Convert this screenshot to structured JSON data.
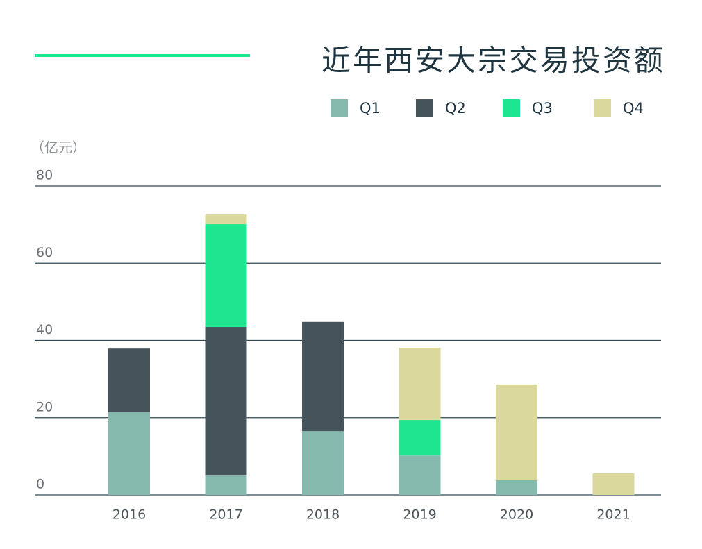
{
  "chart_data": {
    "type": "stacked_bar",
    "title": "近年西安大宗交易投资额",
    "y_label": "（亿元）",
    "categories": [
      "2016",
      "2017",
      "2018",
      "2019",
      "2020",
      "2021"
    ],
    "series": [
      {
        "name": "Q1",
        "color": "#86b9ad",
        "values": [
          21.4,
          5.0,
          16.5,
          10.2,
          3.8,
          0
        ]
      },
      {
        "name": "Q2",
        "color": "#45535a",
        "values": [
          16.5,
          38.5,
          28.3,
          0,
          0,
          0
        ]
      },
      {
        "name": "Q3",
        "color": "#1de590",
        "values": [
          0,
          26.6,
          0,
          9.2,
          0,
          0
        ]
      },
      {
        "name": "Q4",
        "color": "#dbd89e",
        "values": [
          0,
          2.5,
          0,
          18.7,
          24.8,
          5.6
        ]
      }
    ],
    "ylim": [
      0,
      80
    ],
    "yticks": [
      0,
      20,
      40,
      60,
      80
    ],
    "grid": true
  }
}
